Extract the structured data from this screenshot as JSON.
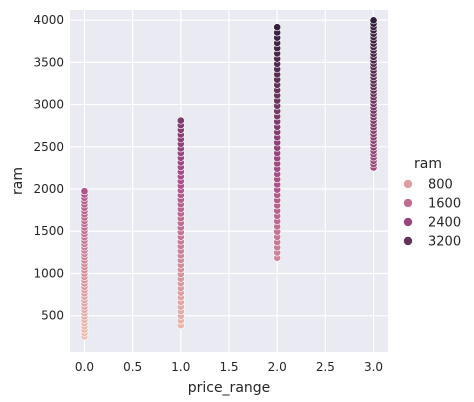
{
  "chart_data": {
    "type": "scatter",
    "title": "",
    "xlabel": "price_range",
    "ylabel": "ram",
    "xlim": [
      -0.15,
      3.15
    ],
    "ylim": [
      70,
      4120
    ],
    "xticks": [
      0.0,
      0.5,
      1.0,
      1.5,
      2.0,
      2.5,
      3.0
    ],
    "xtick_labels": [
      "0.0",
      "0.5",
      "1.0",
      "1.5",
      "2.0",
      "2.5",
      "3.0"
    ],
    "yticks": [
      500,
      1000,
      1500,
      2000,
      2500,
      3000,
      3500,
      4000
    ],
    "ytick_labels": [
      "500",
      "1000",
      "1500",
      "2000",
      "2500",
      "3000",
      "3500",
      "4000"
    ],
    "grid": true,
    "hue": "ram",
    "hue_range": [
      256,
      4000
    ],
    "legend": {
      "title": "ram",
      "placement": "right",
      "entries": [
        {
          "label": "800",
          "value": 800
        },
        {
          "label": "1600",
          "value": 1600
        },
        {
          "label": "2400",
          "value": 2400
        },
        {
          "label": "3200",
          "value": 3200
        }
      ]
    },
    "groups": [
      {
        "x": 0.0,
        "ram_min": 256,
        "ram_max": 1974
      },
      {
        "x": 1.0,
        "ram_min": 387,
        "ram_max": 2811
      },
      {
        "x": 2.0,
        "ram_min": 1185,
        "ram_max": 3916
      },
      {
        "x": 3.0,
        "ram_min": 2255,
        "ram_max": 3998
      }
    ],
    "colors": {
      "background": "#eaeaf2",
      "grid": "#ffffff",
      "hue_low": "#efbfae",
      "hue_mid": "#a94e86",
      "hue_high": "#2e1e3b"
    }
  }
}
